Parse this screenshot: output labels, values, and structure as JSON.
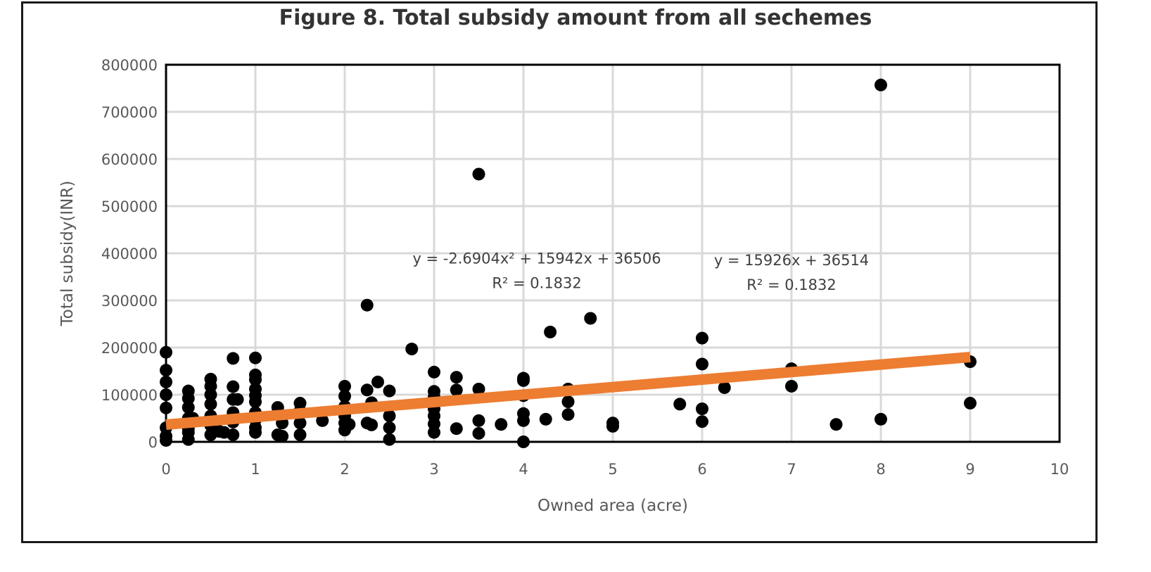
{
  "chart_data": {
    "type": "scatter",
    "title": "Figure 8. Total subsidy amount from all sechemes",
    "xlabel": "Owned area (acre)",
    "ylabel": "Total subsidy(INR)",
    "xlim": [
      0,
      10
    ],
    "ylim": [
      0,
      800000
    ],
    "xticks": [
      "0",
      "1",
      "2",
      "3",
      "4",
      "5",
      "6",
      "7",
      "8",
      "9",
      "10"
    ],
    "yticks": [
      "0",
      "100000",
      "200000",
      "300000",
      "400000",
      "500000",
      "600000",
      "700000",
      "800000"
    ],
    "grid": true,
    "legend": "none",
    "colors": {
      "points": "#000000",
      "trendline": "#ED7D31",
      "grid": "#D9D9D9",
      "axis": "#000000"
    },
    "series": [
      {
        "type": "scatter",
        "points": [
          [
            0,
            190000
          ],
          [
            0,
            152000
          ],
          [
            0,
            127000
          ],
          [
            0,
            100000
          ],
          [
            0,
            72000
          ],
          [
            0,
            30000
          ],
          [
            0,
            12000
          ],
          [
            0,
            3000
          ],
          [
            0.25,
            108000
          ],
          [
            0.25,
            92000
          ],
          [
            0.25,
            73000
          ],
          [
            0.25,
            50000
          ],
          [
            0.25,
            28000
          ],
          [
            0.25,
            20000
          ],
          [
            0.25,
            5000
          ],
          [
            0.3,
            50000
          ],
          [
            0.5,
            133000
          ],
          [
            0.5,
            118000
          ],
          [
            0.5,
            100000
          ],
          [
            0.5,
            80000
          ],
          [
            0.5,
            55000
          ],
          [
            0.5,
            35000
          ],
          [
            0.5,
            15000
          ],
          [
            0.6,
            22000
          ],
          [
            0.65,
            20000
          ],
          [
            0.75,
            177000
          ],
          [
            0.75,
            117000
          ],
          [
            0.75,
            90000
          ],
          [
            0.75,
            62000
          ],
          [
            0.75,
            42000
          ],
          [
            0.75,
            15000
          ],
          [
            0.8,
            90000
          ],
          [
            1,
            178000
          ],
          [
            1,
            142000
          ],
          [
            1,
            132000
          ],
          [
            1,
            112000
          ],
          [
            1,
            98000
          ],
          [
            1,
            85000
          ],
          [
            1,
            62000
          ],
          [
            1,
            47000
          ],
          [
            1,
            30000
          ],
          [
            1,
            20000
          ],
          [
            1.25,
            73000
          ],
          [
            1.25,
            60000
          ],
          [
            1.25,
            15000
          ],
          [
            1.3,
            40000
          ],
          [
            1.3,
            12000
          ],
          [
            1.5,
            82000
          ],
          [
            1.5,
            66000
          ],
          [
            1.5,
            40000
          ],
          [
            1.5,
            15000
          ],
          [
            1.75,
            45000
          ],
          [
            2,
            118000
          ],
          [
            2,
            97000
          ],
          [
            2,
            75000
          ],
          [
            2,
            55000
          ],
          [
            2,
            40000
          ],
          [
            2,
            25000
          ],
          [
            2.05,
            37000
          ],
          [
            2.25,
            290000
          ],
          [
            2.25,
            110000
          ],
          [
            2.25,
            40000
          ],
          [
            2.3,
            83000
          ],
          [
            2.3,
            36000
          ],
          [
            2.37,
            127000
          ],
          [
            2.5,
            108000
          ],
          [
            2.5,
            55000
          ],
          [
            2.5,
            30000
          ],
          [
            2.5,
            5000
          ],
          [
            2.75,
            197000
          ],
          [
            3,
            148000
          ],
          [
            3,
            107000
          ],
          [
            3,
            95000
          ],
          [
            3,
            70000
          ],
          [
            3,
            55000
          ],
          [
            3,
            38000
          ],
          [
            3,
            20000
          ],
          [
            3.25,
            137000
          ],
          [
            3.25,
            110000
          ],
          [
            3.25,
            28000
          ],
          [
            3.5,
            568000
          ],
          [
            3.5,
            112000
          ],
          [
            3.5,
            45000
          ],
          [
            3.5,
            18000
          ],
          [
            3.75,
            37000
          ],
          [
            4,
            135000
          ],
          [
            4,
            130000
          ],
          [
            4,
            98000
          ],
          [
            4,
            60000
          ],
          [
            4,
            45000
          ],
          [
            4,
            0
          ],
          [
            4.25,
            48000
          ],
          [
            4.3,
            233000
          ],
          [
            4.5,
            112000
          ],
          [
            4.5,
            85000
          ],
          [
            4.5,
            58000
          ],
          [
            4.75,
            262000
          ],
          [
            5,
            40000
          ],
          [
            5,
            33000
          ],
          [
            5.75,
            80000
          ],
          [
            6,
            220000
          ],
          [
            6,
            165000
          ],
          [
            6,
            70000
          ],
          [
            6,
            43000
          ],
          [
            6.25,
            115000
          ],
          [
            7,
            155000
          ],
          [
            7,
            118000
          ],
          [
            7.5,
            37000
          ],
          [
            8,
            757000
          ],
          [
            8,
            48000
          ],
          [
            9,
            170000
          ],
          [
            9,
            82000
          ]
        ]
      },
      {
        "type": "line",
        "points": [
          [
            0,
            36514
          ],
          [
            9,
            179848
          ]
        ]
      }
    ],
    "annotations": [
      {
        "id": "poly",
        "x": 4.15,
        "y": 378000,
        "text": "y = -2.6904x² + 15942x + 36506",
        "r2": "R² = 0.1832"
      },
      {
        "id": "linear",
        "x": 7.0,
        "y": 375000,
        "text": "y = 15926x + 36514",
        "r2": "R² = 0.1832"
      }
    ]
  }
}
